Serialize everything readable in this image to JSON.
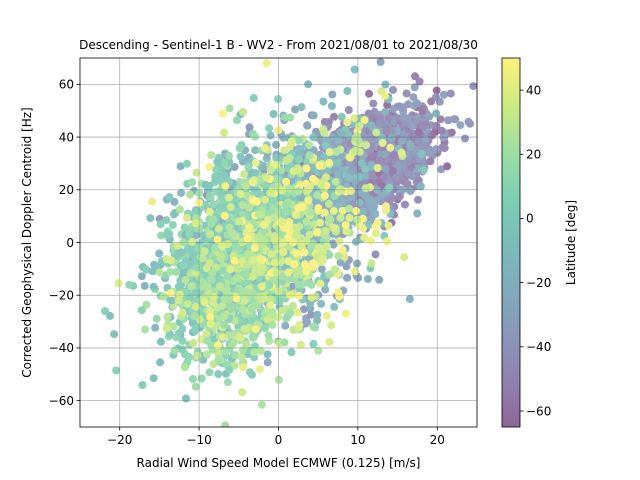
{
  "chart_data": {
    "type": "scatter",
    "title": "Descending - Sentinel-1 B - WV2 - From 2021/08/01 to 2021/08/30",
    "xlabel": "Radial Wind Speed Model ECMWF (0.125) [m/s]",
    "ylabel": "Corrected Geophysical Doppler Centroid [Hz]",
    "xlim": [
      -25,
      25
    ],
    "ylim": [
      -70,
      70
    ],
    "xticks": [
      -20,
      -10,
      0,
      10,
      20
    ],
    "yticks": [
      -60,
      -40,
      -20,
      0,
      20,
      40,
      60
    ],
    "xtick_labels": [
      "−20",
      "−10",
      "0",
      "10",
      "20"
    ],
    "ytick_labels": [
      "−60",
      "−40",
      "−20",
      "0",
      "20",
      "40",
      "60"
    ],
    "grid": true,
    "colormap": "viridis",
    "colorbar": {
      "label": "Latitude [deg]",
      "range": [
        -65,
        50
      ],
      "ticks": [
        -60,
        -40,
        -20,
        0,
        20,
        40
      ],
      "tick_labels": [
        "−60",
        "−40",
        "−20",
        "0",
        "20",
        "40"
      ]
    },
    "point_alpha": 0.55,
    "series": [
      {
        "name": "",
        "color_latitude": -45,
        "n": 1500,
        "x_mean": 11,
        "x_sd": 4.5,
        "y_mean": 30,
        "y_sd": 9
      },
      {
        "name": "",
        "color_latitude": -20,
        "n": 900,
        "x_mean": 1,
        "x_sd": 6.5,
        "y_mean": 8,
        "y_sd": 16
      },
      {
        "name": "",
        "color_latitude": 5,
        "n": 1100,
        "x_mean": -6,
        "x_sd": 4,
        "y_mean": -5,
        "y_sd": 17
      },
      {
        "name": "",
        "color_latitude": 25,
        "n": 500,
        "x_mean": -3,
        "x_sd": 5,
        "y_mean": -10,
        "y_sd": 18
      },
      {
        "name": "",
        "color_latitude": 40,
        "n": 250,
        "x_mean": 3,
        "x_sd": 6,
        "y_mean": 10,
        "y_sd": 20
      }
    ]
  }
}
